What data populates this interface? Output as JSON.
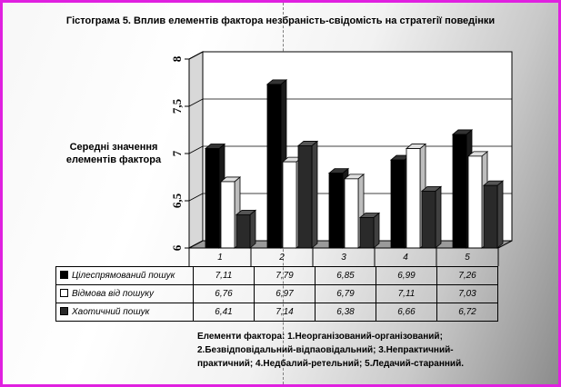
{
  "title": "Гістограма 5. Вплив елементів фактора незбраність-свідомість на стратегії поведінки",
  "colors": {
    "frame": "#e020e0",
    "s1": "#000000",
    "s2": "#ffffff",
    "s3": "#2a2a2a"
  },
  "chart_data": {
    "type": "bar",
    "title": "Гістограма 5. Вплив елементів фактора незбраність-свідомість на стратегії поведінки",
    "ylabel": "Середні значення елементів фактора",
    "xlabel": "",
    "ylim": [
      6,
      8
    ],
    "yticks": [
      "6",
      "6,5",
      "7",
      "7,5",
      "8"
    ],
    "categories": [
      "1",
      "2",
      "3",
      "4",
      "5"
    ],
    "grid": true,
    "style": "3d",
    "series": [
      {
        "name": "Цілеспрямований пошук",
        "values": [
          7.11,
          7.79,
          6.85,
          6.99,
          7.26
        ],
        "labels": [
          "7,11",
          "7,79",
          "6,85",
          "6,99",
          "7,26"
        ]
      },
      {
        "name": "Відмова від пошуку",
        "values": [
          6.76,
          6.97,
          6.79,
          7.11,
          7.03
        ],
        "labels": [
          "6,76",
          "6,97",
          "6,79",
          "7,11",
          "7,03"
        ]
      },
      {
        "name": "Хаотичний пошук",
        "values": [
          6.41,
          7.14,
          6.38,
          6.66,
          6.72
        ],
        "labels": [
          "6,41",
          "7,14",
          "6,38",
          "6,66",
          "6,72"
        ]
      }
    ]
  },
  "legend_text": {
    "line1": "Елементи фактора: 1.Неорганізований-організований;",
    "line2": "2.Безвідповідальний-відпаовідальний; 3.Непрактичний-",
    "line3": "практичний; 4.Недбалий-ретельний; 5.Ледачий-старанний."
  }
}
